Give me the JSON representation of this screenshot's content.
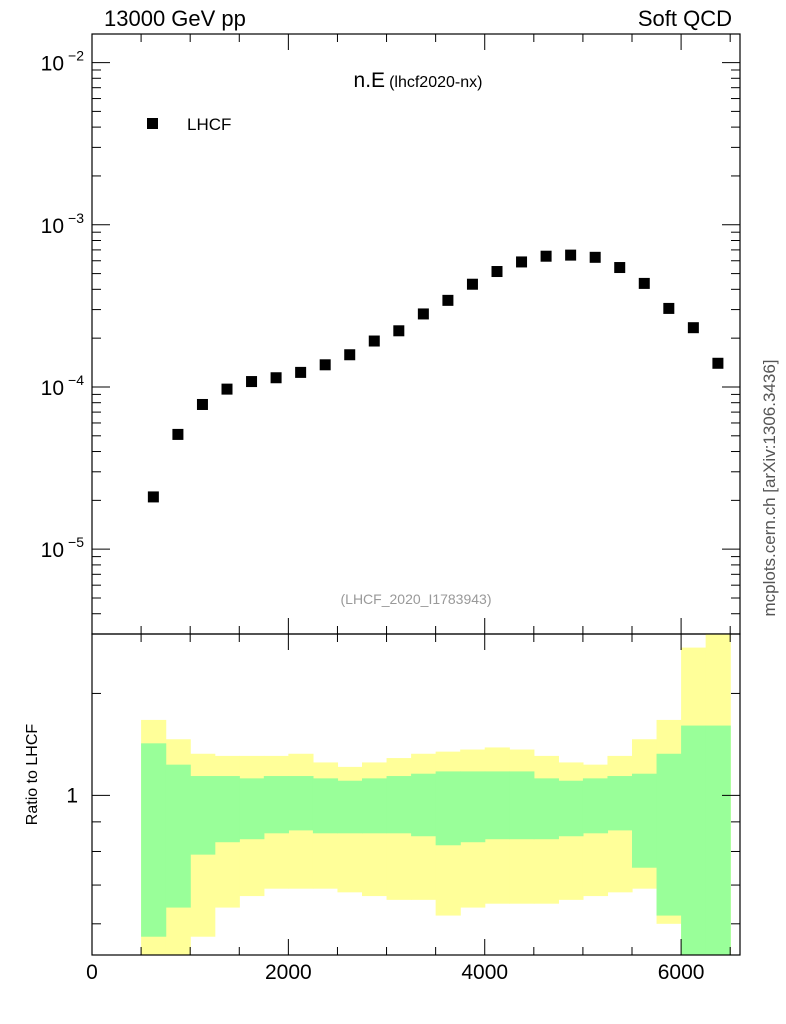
{
  "header": {
    "left": "13000 GeV pp",
    "right": "Soft QCD"
  },
  "side_credit": "mcplots.cern.ch [arXiv:1306.3436]",
  "colors": {
    "data_marker": "#000000",
    "band_inner": "#99ff99",
    "band_outer": "#ffff99",
    "watermark": "#999999"
  },
  "chart_data": [
    {
      "type": "scatter",
      "title_main": "n.E",
      "title_sub": "(lhcf2020-nx)",
      "watermark": "(LHCF_2020_I1783943)",
      "legend": {
        "label": "LHCF",
        "placement": "top-left"
      },
      "yscale": "log",
      "ylim": [
        3e-06,
        0.015
      ],
      "xlim": [
        0,
        6600
      ],
      "y_tick_labels": [
        {
          "value": 0.01,
          "base": "10",
          "exp": "−2"
        },
        {
          "value": 0.001,
          "base": "10",
          "exp": "−3"
        },
        {
          "value": 0.0001,
          "base": "10",
          "exp": "−4"
        },
        {
          "value": 1e-05,
          "base": "10",
          "exp": "−5"
        }
      ],
      "series": [
        {
          "name": "LHCF",
          "x": [
            625,
            875,
            1125,
            1375,
            1625,
            1875,
            2125,
            2375,
            2625,
            2875,
            3125,
            3375,
            3625,
            3875,
            4125,
            4375,
            4625,
            4875,
            5125,
            5375,
            5625,
            5875,
            6125,
            6375
          ],
          "y": [
            2.1e-05,
            5.1e-05,
            7.8e-05,
            9.7e-05,
            0.000108,
            0.000114,
            0.000123,
            0.000137,
            0.000158,
            0.000192,
            0.000222,
            0.000282,
            0.000342,
            0.00043,
            0.000515,
            0.00059,
            0.00064,
            0.00065,
            0.00063,
            0.000545,
            0.000435,
            0.000305,
            0.000232,
            0.00014
          ]
        }
      ]
    },
    {
      "type": "area",
      "ylabel": "Ratio to LHCF",
      "yscale": "log",
      "ylim": [
        0.53,
        1.9
      ],
      "xlim": [
        0,
        6600
      ],
      "x_tick_labels": [
        "0",
        "2000",
        "4000",
        "6000"
      ],
      "x_ticks": [
        0,
        2000,
        4000,
        6000
      ],
      "y_tick_labels": [
        "1"
      ],
      "y_ticks": [
        1
      ],
      "bin_edges": [
        500,
        750,
        1000,
        1250,
        1500,
        1750,
        2000,
        2250,
        2500,
        2750,
        3000,
        3250,
        3500,
        3750,
        4000,
        4250,
        4500,
        4750,
        5000,
        5250,
        5500,
        5750,
        6000,
        6250,
        6500
      ],
      "bands": [
        {
          "name": "outer",
          "lower": [
            0.53,
            0.53,
            0.57,
            0.64,
            0.67,
            0.69,
            0.69,
            0.69,
            0.68,
            0.67,
            0.66,
            0.66,
            0.62,
            0.64,
            0.65,
            0.65,
            0.65,
            0.66,
            0.67,
            0.68,
            0.69,
            0.6,
            0.53,
            0.53
          ],
          "upper": [
            1.35,
            1.25,
            1.18,
            1.17,
            1.17,
            1.17,
            1.18,
            1.14,
            1.12,
            1.14,
            1.16,
            1.18,
            1.19,
            1.2,
            1.21,
            1.2,
            1.17,
            1.14,
            1.13,
            1.17,
            1.25,
            1.35,
            1.8,
            1.9
          ]
        },
        {
          "name": "inner",
          "lower": [
            0.57,
            0.64,
            0.79,
            0.83,
            0.84,
            0.86,
            0.87,
            0.86,
            0.86,
            0.86,
            0.86,
            0.85,
            0.82,
            0.83,
            0.84,
            0.84,
            0.84,
            0.85,
            0.86,
            0.87,
            0.75,
            0.62,
            0.53,
            0.53
          ],
          "upper": [
            1.23,
            1.13,
            1.08,
            1.08,
            1.07,
            1.08,
            1.08,
            1.07,
            1.06,
            1.07,
            1.08,
            1.09,
            1.1,
            1.1,
            1.1,
            1.1,
            1.07,
            1.06,
            1.07,
            1.08,
            1.09,
            1.18,
            1.32,
            1.32
          ]
        }
      ]
    }
  ]
}
